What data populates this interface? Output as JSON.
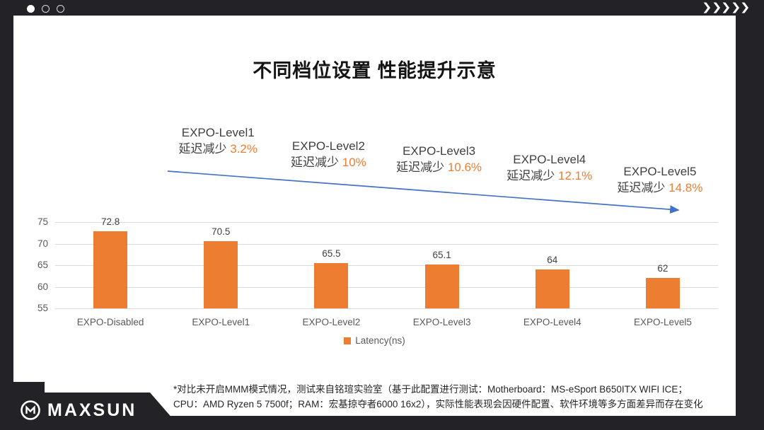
{
  "title": "不同档位设置 性能提升示意",
  "chart_data": {
    "type": "bar",
    "title": "不同档位设置 性能提升示意",
    "categories": [
      "EXPO-Disabled",
      "EXPO-Level1",
      "EXPO-Level2",
      "EXPO-Level3",
      "EXPO-Level4",
      "EXPO-Level5"
    ],
    "values": [
      72.8,
      70.5,
      65.5,
      65.1,
      64,
      62
    ],
    "ylim": [
      55,
      75
    ],
    "yticks": [
      75,
      70,
      65,
      60,
      55
    ],
    "grid": true,
    "bar_color": "#ED7D31",
    "legend": [
      "Latency(ns)"
    ],
    "legend_position": "bottom",
    "annotations": [
      {
        "label": "EXPO-Level1",
        "text": "延迟减少",
        "percent": "3.2%"
      },
      {
        "label": "EXPO-Level2",
        "text": "延迟减少",
        "percent": "10%"
      },
      {
        "label": "EXPO-Level3",
        "text": "延迟减少",
        "percent": "10.6%"
      },
      {
        "label": "EXPO-Level4",
        "text": "延迟减少",
        "percent": "12.1%"
      },
      {
        "label": "EXPO-Level5",
        "text": "延迟减少",
        "percent": "14.8%"
      }
    ],
    "trend_arrow": {
      "direction": "down-right",
      "color": "#4472C4"
    }
  },
  "footnote": {
    "line1": "*对比未开启MMM模式情况，测试来自铭瑄实验室（基于此配置进行测试：Motherboard：MS-eSport B650ITX WIFI ICE；",
    "line2": "CPU：AMD Ryzen 5 7500f；RAM：宏基掠夺者6000 16x2），实际性能表现会因硬件配置、软件环境等多方面差异而存在变化"
  },
  "brand": {
    "name": "MAXSUN"
  },
  "colors": {
    "accent_orange": "#ED7D31",
    "arrow_blue": "#4472C4",
    "frame_dark": "#232327"
  }
}
